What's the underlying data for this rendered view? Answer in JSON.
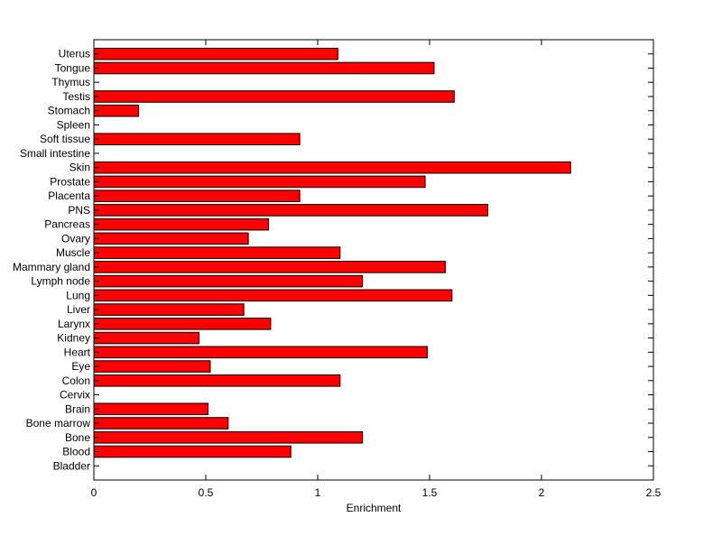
{
  "chart_data": {
    "type": "bar",
    "orientation": "horizontal",
    "title": "",
    "xlabel": "Enrichment",
    "ylabel": "",
    "xlim": [
      0,
      2.5
    ],
    "xticks": [
      0,
      0.5,
      1,
      1.5,
      2,
      2.5
    ],
    "xtick_labels": [
      "0",
      "0.5",
      "1",
      "1.5",
      "2",
      "2.5"
    ],
    "grid": false,
    "bar_color": "#ff0000",
    "categories": [
      "Bladder",
      "Blood",
      "Bone",
      "Bone marrow",
      "Brain",
      "Cervix",
      "Colon",
      "Eye",
      "Heart",
      "Kidney",
      "Larynx",
      "Liver",
      "Lung",
      "Lymph node",
      "Mammary gland",
      "Muscle",
      "Ovary",
      "Pancreas",
      "PNS",
      "Placenta",
      "Prostate",
      "Skin",
      "Small intestine",
      "Soft tissue",
      "Spleen",
      "Stomach",
      "Testis",
      "Thymus",
      "Tongue",
      "Uterus"
    ],
    "values": [
      0,
      0.88,
      1.2,
      0.6,
      0.51,
      0,
      1.1,
      0.52,
      1.49,
      0.47,
      0.79,
      0.67,
      1.6,
      1.2,
      1.57,
      1.1,
      0.69,
      0.78,
      1.76,
      0.92,
      1.48,
      2.13,
      0,
      0.92,
      0,
      0.2,
      1.61,
      0,
      1.52,
      1.09
    ]
  }
}
